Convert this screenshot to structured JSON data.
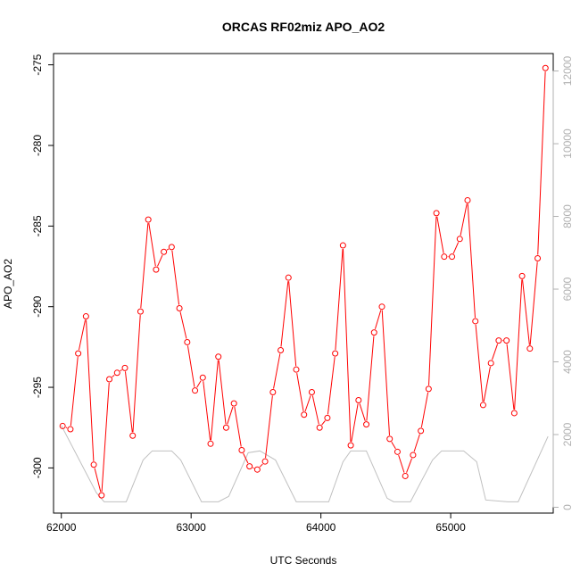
{
  "chart_data": {
    "type": "line",
    "title": "ORCAS RF02miz APO_AO2",
    "xlabel": "UTC Seconds",
    "ylabel": "APO_AO2",
    "xlim": [
      61940,
      65790
    ],
    "ylim": [
      -302.8,
      -274.3
    ],
    "xticks": [
      62000,
      63000,
      64000,
      65000
    ],
    "yticks": [
      -300,
      -295,
      -290,
      -285,
      -280,
      -275
    ],
    "y2lim": [
      -160,
      12480
    ],
    "y2ticks": [
      0,
      2000,
      4000,
      6000,
      8000,
      10000,
      12000
    ],
    "grid": false,
    "colors": {
      "primary": "#ff0000",
      "secondary": "#c0c0c0"
    },
    "series": [
      {
        "axis": "left",
        "markers": "open-circle",
        "x": [
          62010,
          62070,
          62130,
          62190,
          62250,
          62310,
          62370,
          62430,
          62490,
          62550,
          62610,
          62670,
          62730,
          62790,
          62850,
          62910,
          62970,
          63030,
          63090,
          63150,
          63210,
          63270,
          63330,
          63390,
          63450,
          63510,
          63570,
          63630,
          63690,
          63750,
          63810,
          63870,
          63930,
          63990,
          64050,
          64110,
          64170,
          64230,
          64290,
          64350,
          64410,
          64470,
          64530,
          64590,
          64650,
          64710,
          64770,
          64830,
          64890,
          64950,
          65010,
          65070,
          65130,
          65190,
          65250,
          65310,
          65370,
          65430,
          65490,
          65550,
          65610,
          65670,
          65730
        ],
        "y": [
          -297.4,
          -297.6,
          -292.9,
          -290.6,
          -299.8,
          -301.7,
          -294.5,
          -294.1,
          -293.8,
          -298.0,
          -290.3,
          -284.6,
          -287.7,
          -286.6,
          -286.3,
          -290.1,
          -292.2,
          -295.2,
          -294.4,
          -298.5,
          -293.1,
          -297.5,
          -296.0,
          -298.9,
          -299.9,
          -300.1,
          -299.6,
          -295.3,
          -292.7,
          -288.2,
          -293.9,
          -296.7,
          -295.3,
          -297.5,
          -296.9,
          -292.9,
          -286.2,
          -298.6,
          -295.8,
          -297.3,
          -291.6,
          -290.0,
          -298.2,
          -299.0,
          -300.5,
          -299.2,
          -297.7,
          -295.1,
          -284.2,
          -286.9,
          -286.9,
          -285.8,
          -283.4,
          -290.9,
          -296.1,
          -293.5,
          -292.1,
          -292.1,
          -296.6,
          -288.1,
          -292.6,
          -287.0,
          -275.2
        ]
      },
      {
        "axis": "right",
        "markers": "none",
        "x": [
          62000,
          62270,
          62330,
          62500,
          62630,
          62700,
          62850,
          62920,
          63080,
          63210,
          63290,
          63440,
          63530,
          63650,
          63810,
          63880,
          64060,
          64170,
          64230,
          64350,
          64510,
          64560,
          64690,
          64860,
          64930,
          65100,
          65200,
          65270,
          65440,
          65520,
          65750
        ],
        "y": [
          2250,
          400,
          150,
          150,
          1300,
          1550,
          1550,
          1300,
          150,
          150,
          300,
          1500,
          1550,
          1300,
          150,
          150,
          150,
          1250,
          1550,
          1550,
          250,
          150,
          150,
          1300,
          1550,
          1550,
          1250,
          200,
          150,
          150,
          1950
        ]
      }
    ]
  }
}
